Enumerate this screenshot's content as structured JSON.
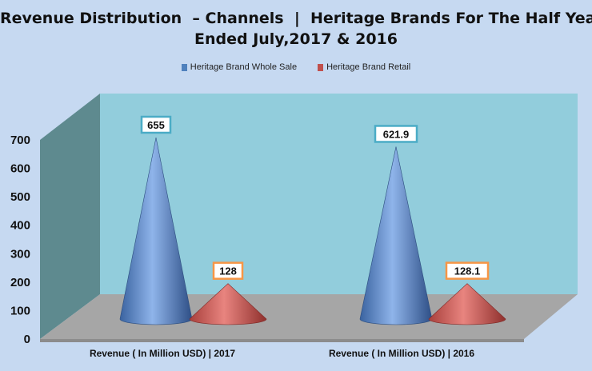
{
  "chart_data": {
    "type": "bar",
    "title_lines": [
      "Revenue Distribution  – Channels  |  Heritage Brands For The Half Year",
      "Ended July,2017 & 2016"
    ],
    "categories": [
      "Revenue ( In Million USD)  |  2017",
      "Revenue ( In Million USD)  |  2016"
    ],
    "series": [
      {
        "name": "Heritage Brand  Whole Sale",
        "values": [
          655,
          621.9
        ],
        "color": "#4f81bd"
      },
      {
        "name": "Heritage Brand  Retail",
        "values": [
          128,
          128.1
        ],
        "color": "#c0504d"
      }
    ],
    "label_border_colors": [
      "#4bacc6",
      "#f79646"
    ],
    "y_ticks": [
      0,
      100,
      200,
      300,
      400,
      500,
      600,
      700
    ],
    "ylim": [
      0,
      700
    ],
    "xlabel": "",
    "ylabel": "",
    "legend_position": "top",
    "bar_shape": "cone",
    "grid": false,
    "wall_color": "#92cddc",
    "side_wall_color": "#5e8a8f",
    "floor_color": "#a6a6a6"
  }
}
